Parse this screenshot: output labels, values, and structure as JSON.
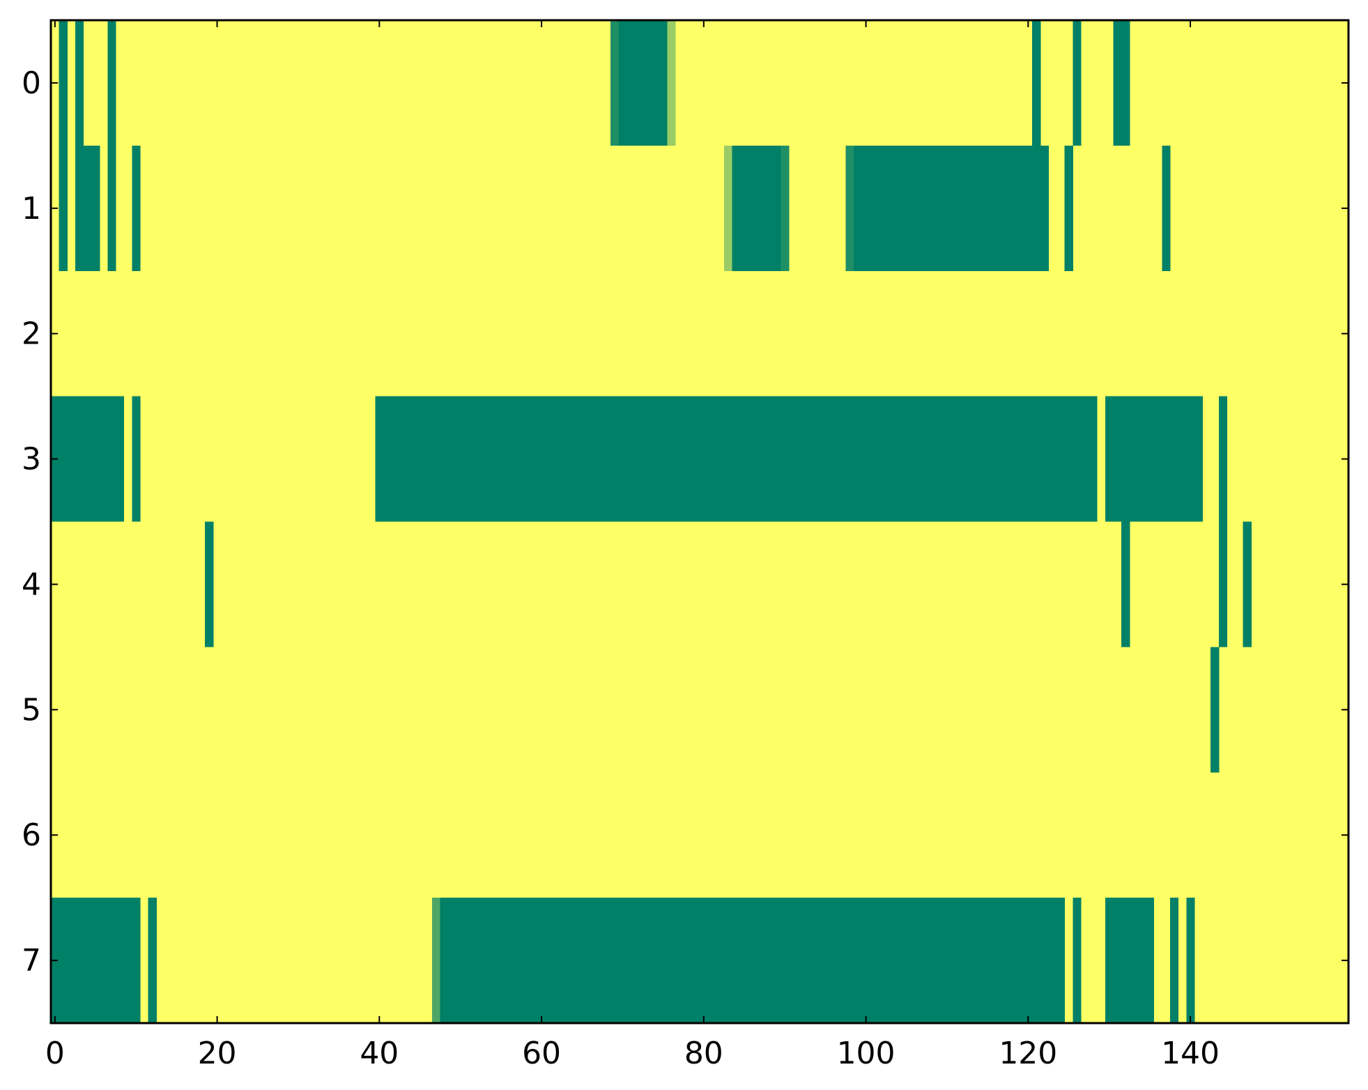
{
  "chart_data": {
    "type": "heatmap",
    "title": "",
    "xlabel": "",
    "ylabel": "",
    "x_range": [
      -0.5,
      159.5
    ],
    "y_range": [
      -0.5,
      7.5
    ],
    "x_ticks": [
      0,
      20,
      40,
      60,
      80,
      100,
      120,
      140
    ],
    "x_tick_labels": [
      "0",
      "20",
      "40",
      "60",
      "80",
      "100",
      "120",
      "140"
    ],
    "y_ticks": [
      0,
      1,
      2,
      3,
      4,
      5,
      6,
      7
    ],
    "y_tick_labels": [
      "0",
      "1",
      "2",
      "3",
      "4",
      "5",
      "6",
      "7"
    ],
    "grid": false,
    "legend": "none",
    "value_range": [
      0,
      1
    ],
    "colormap": "summer_r",
    "colors": {
      "high": "#00806a",
      "mid": "#1e8f66",
      "light": "#9ccd65",
      "lighter": "#4ba766",
      "background": "#ffff66",
      "axes": "#000000"
    },
    "background_value": 0,
    "n_rows": 8,
    "n_cols": 160,
    "nonzero_runs": [
      {
        "row": 0,
        "start": 1,
        "end": 1,
        "value": 1
      },
      {
        "row": 0,
        "start": 3,
        "end": 3,
        "value": 1
      },
      {
        "row": 0,
        "start": 7,
        "end": 7,
        "value": 1
      },
      {
        "row": 0,
        "start": 69,
        "end": 69,
        "value": 0.88
      },
      {
        "row": 0,
        "start": 70,
        "end": 75,
        "value": 1
      },
      {
        "row": 0,
        "start": 76,
        "end": 76,
        "value": 0.4
      },
      {
        "row": 0,
        "start": 121,
        "end": 121,
        "value": 1
      },
      {
        "row": 0,
        "start": 126,
        "end": 126,
        "value": 1
      },
      {
        "row": 0,
        "start": 131,
        "end": 132,
        "value": 1
      },
      {
        "row": 1,
        "start": 1,
        "end": 1,
        "value": 1
      },
      {
        "row": 1,
        "start": 3,
        "end": 5,
        "value": 1
      },
      {
        "row": 1,
        "start": 7,
        "end": 7,
        "value": 1
      },
      {
        "row": 1,
        "start": 10,
        "end": 10,
        "value": 1
      },
      {
        "row": 1,
        "start": 83,
        "end": 83,
        "value": 0.4
      },
      {
        "row": 1,
        "start": 84,
        "end": 89,
        "value": 1
      },
      {
        "row": 1,
        "start": 90,
        "end": 90,
        "value": 0.88
      },
      {
        "row": 1,
        "start": 98,
        "end": 98,
        "value": 0.88
      },
      {
        "row": 1,
        "start": 99,
        "end": 122,
        "value": 1
      },
      {
        "row": 1,
        "start": 125,
        "end": 125,
        "value": 1
      },
      {
        "row": 1,
        "start": 137,
        "end": 137,
        "value": 1
      },
      {
        "row": 3,
        "start": 0,
        "end": 8,
        "value": 1
      },
      {
        "row": 3,
        "start": 10,
        "end": 10,
        "value": 1
      },
      {
        "row": 3,
        "start": 40,
        "end": 128,
        "value": 1
      },
      {
        "row": 3,
        "start": 130,
        "end": 141,
        "value": 1
      },
      {
        "row": 3,
        "start": 144,
        "end": 144,
        "value": 1
      },
      {
        "row": 4,
        "start": 19,
        "end": 19,
        "value": 1
      },
      {
        "row": 4,
        "start": 132,
        "end": 132,
        "value": 1
      },
      {
        "row": 4,
        "start": 144,
        "end": 144,
        "value": 1
      },
      {
        "row": 4,
        "start": 147,
        "end": 147,
        "value": 1
      },
      {
        "row": 5,
        "start": 143,
        "end": 143,
        "value": 1
      },
      {
        "row": 7,
        "start": 0,
        "end": 10,
        "value": 1
      },
      {
        "row": 7,
        "start": 12,
        "end": 12,
        "value": 1
      },
      {
        "row": 7,
        "start": 47,
        "end": 47,
        "value": 0.7
      },
      {
        "row": 7,
        "start": 48,
        "end": 124,
        "value": 1
      },
      {
        "row": 7,
        "start": 126,
        "end": 126,
        "value": 1
      },
      {
        "row": 7,
        "start": 130,
        "end": 135,
        "value": 1
      },
      {
        "row": 7,
        "start": 138,
        "end": 138,
        "value": 1
      },
      {
        "row": 7,
        "start": 140,
        "end": 140,
        "value": 1
      }
    ]
  }
}
